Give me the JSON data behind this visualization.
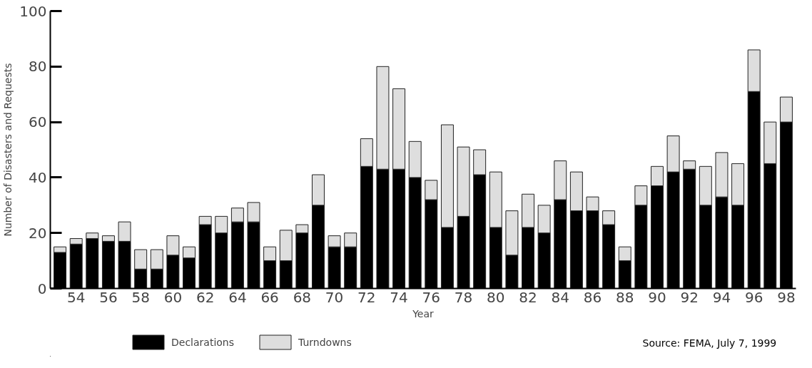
{
  "chart_data": {
    "type": "bar",
    "stacked": true,
    "categories": [
      null,
      "54",
      null,
      "56",
      null,
      "58",
      null,
      "60",
      null,
      "62",
      null,
      "64",
      null,
      "66",
      null,
      "68",
      null,
      "70",
      null,
      "72",
      null,
      "74",
      null,
      "76",
      null,
      "78",
      null,
      "80",
      null,
      "82",
      null,
      "84",
      null,
      "86",
      null,
      "88",
      null,
      "90",
      null,
      "92",
      null,
      "94",
      null,
      "96",
      null,
      "98"
    ],
    "series": [
      {
        "name": "Declarations",
        "color": "#000000",
        "values": [
          13,
          16,
          18,
          17,
          17,
          7,
          7,
          12,
          11,
          23,
          20,
          24,
          24,
          10,
          10,
          20,
          30,
          15,
          15,
          44,
          43,
          43,
          40,
          32,
          22,
          26,
          41,
          22,
          12,
          22,
          20,
          32,
          28,
          28,
          23,
          10,
          30,
          37,
          42,
          43,
          30,
          33,
          30,
          71,
          45,
          60
        ]
      },
      {
        "name": "Turndowns",
        "color": "#dedede",
        "values": [
          2,
          2,
          2,
          2,
          7,
          7,
          7,
          7,
          4,
          3,
          6,
          5,
          7,
          5,
          11,
          3,
          11,
          4,
          5,
          10,
          37,
          29,
          13,
          7,
          37,
          25,
          9,
          20,
          16,
          12,
          10,
          14,
          14,
          5,
          5,
          5,
          7,
          7,
          13,
          3,
          14,
          16,
          15,
          15,
          15,
          9
        ]
      }
    ],
    "xlabel": "Year",
    "ylabel": "Number of Disasters and Requests",
    "ylim": [
      0,
      100
    ],
    "yticks": [
      0,
      20,
      40,
      60,
      80,
      100
    ],
    "grid": false,
    "legend": "bottom",
    "annotations": [
      "Source: FEMA, July 7, 1999"
    ]
  }
}
